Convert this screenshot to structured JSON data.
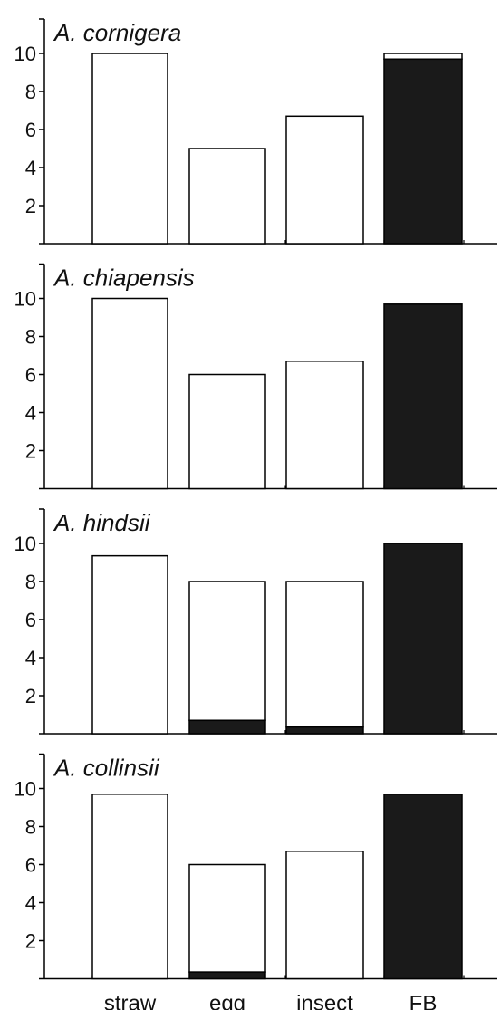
{
  "colors": {
    "filled": "#1a1a1a",
    "open": "#ffffff",
    "outline": "#000000"
  },
  "chart_data": [
    {
      "type": "bar",
      "title": "A. cornigera",
      "categories": [
        "straw",
        "egg",
        "insect",
        "FB"
      ],
      "yticks": [
        2,
        4,
        6,
        8,
        10
      ],
      "ylim": [
        0,
        12
      ],
      "series": [
        {
          "values": [
            0,
            0,
            0,
            9.7
          ]
        },
        {
          "values": [
            10,
            5,
            6.7,
            0.3
          ]
        }
      ],
      "stacked": true
    },
    {
      "type": "bar",
      "title": "A. chiapensis",
      "categories": [
        "straw",
        "egg",
        "insect",
        "FB"
      ],
      "yticks": [
        2,
        4,
        6,
        8,
        10
      ],
      "ylim": [
        0,
        12
      ],
      "series": [
        {
          "values": [
            0,
            0,
            0,
            9.7
          ]
        },
        {
          "values": [
            10,
            6,
            6.7,
            0
          ]
        }
      ],
      "stacked": true
    },
    {
      "type": "bar",
      "title": "A. hindsii",
      "categories": [
        "straw",
        "egg",
        "insect",
        "FB"
      ],
      "yticks": [
        2,
        4,
        6,
        8,
        10
      ],
      "ylim": [
        0,
        12
      ],
      "series": [
        {
          "values": [
            0,
            0.7,
            0.35,
            10
          ]
        },
        {
          "values": [
            9.35,
            7.3,
            7.65,
            0
          ]
        }
      ],
      "stacked": true
    },
    {
      "type": "bar",
      "title": "A. collinsii",
      "categories": [
        "straw",
        "egg",
        "insect",
        "FB"
      ],
      "yticks": [
        2,
        4,
        6,
        8,
        10
      ],
      "ylim": [
        0,
        12
      ],
      "series": [
        {
          "values": [
            0,
            0.35,
            0,
            9.7
          ]
        },
        {
          "values": [
            9.7,
            5.65,
            6.7,
            0
          ]
        }
      ],
      "stacked": true
    }
  ]
}
